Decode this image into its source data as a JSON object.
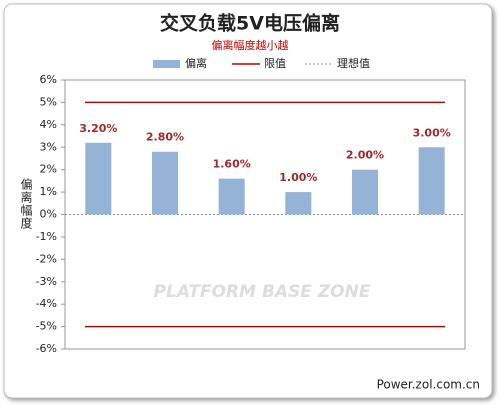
{
  "chart_data": {
    "type": "bar",
    "title": "交叉负载5V电压偏离",
    "subtitle": "偏离幅度越小越",
    "y_label": "偏离幅度",
    "categories": [
      null,
      null,
      null,
      null,
      null,
      null
    ],
    "series": [
      {
        "name": "偏离",
        "color": "#95b3d7",
        "values": [
          3.2,
          2.8,
          1.6,
          1.0,
          2.0,
          3.0
        ],
        "value_labels": [
          "3.20%",
          "2.80%",
          "1.60%",
          "1.00%",
          "2.00%",
          "3.00%"
        ]
      }
    ],
    "reference_lines": [
      {
        "name": "限值",
        "color": "#c00000",
        "values": [
          5,
          -5
        ],
        "style": "solid"
      },
      {
        "name": "理想值",
        "color": "#7f8fa6",
        "values": [
          0
        ],
        "style": "dotted"
      }
    ],
    "ylim": [
      -6,
      6
    ],
    "yticks": [
      {
        "value": -6,
        "label": "-6%"
      },
      {
        "value": -5,
        "label": "-5%"
      },
      {
        "value": -4,
        "label": "-4%"
      },
      {
        "value": -3,
        "label": "-3%"
      },
      {
        "value": -2,
        "label": "-2%"
      },
      {
        "value": -1,
        "label": "-1%"
      },
      {
        "value": 0,
        "label": "0%"
      },
      {
        "value": 1,
        "label": "1%"
      },
      {
        "value": 2,
        "label": "2%"
      },
      {
        "value": 3,
        "label": "3%"
      },
      {
        "value": 4,
        "label": "4%"
      },
      {
        "value": 5,
        "label": "5%"
      },
      {
        "value": 6,
        "label": "6%"
      }
    ],
    "watermark": "PLATFORM BASE ZONE",
    "footer": "Power.zol.com.cn"
  }
}
